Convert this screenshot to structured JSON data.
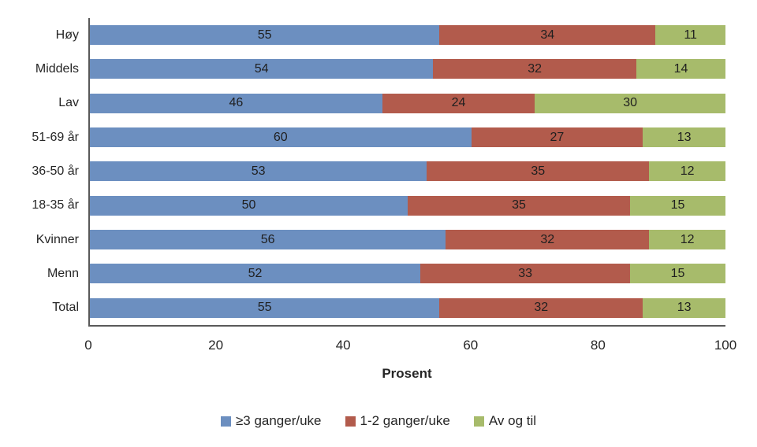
{
  "chart": {
    "background": "#ffffff",
    "axis_color": "#595959",
    "text_color": "#262626"
  },
  "chart_data": {
    "type": "bar",
    "orientation": "horizontal",
    "stacked": true,
    "title": "",
    "xlabel": "Prosent",
    "ylabel": "",
    "xlim": [
      0,
      100
    ],
    "xticks": [
      0,
      20,
      40,
      60,
      80,
      100
    ],
    "grid": false,
    "legend_position": "bottom",
    "categories": [
      "Høy",
      "Middels",
      "Lav",
      "51-69 år",
      "36-50 år",
      "18-35 år",
      "Kvinner",
      "Menn",
      "Total"
    ],
    "series": [
      {
        "name": "≥3 ganger/uke",
        "color": "#6C8FC0",
        "values": [
          55,
          54,
          46,
          60,
          53,
          50,
          56,
          52,
          55
        ]
      },
      {
        "name": "1-2 ganger/uke",
        "color": "#B25B4C",
        "values": [
          34,
          32,
          24,
          27,
          35,
          35,
          32,
          33,
          32
        ]
      },
      {
        "name": "Av og til",
        "color": "#A7BB6B",
        "values": [
          11,
          14,
          30,
          13,
          12,
          15,
          12,
          15,
          13
        ]
      }
    ]
  }
}
